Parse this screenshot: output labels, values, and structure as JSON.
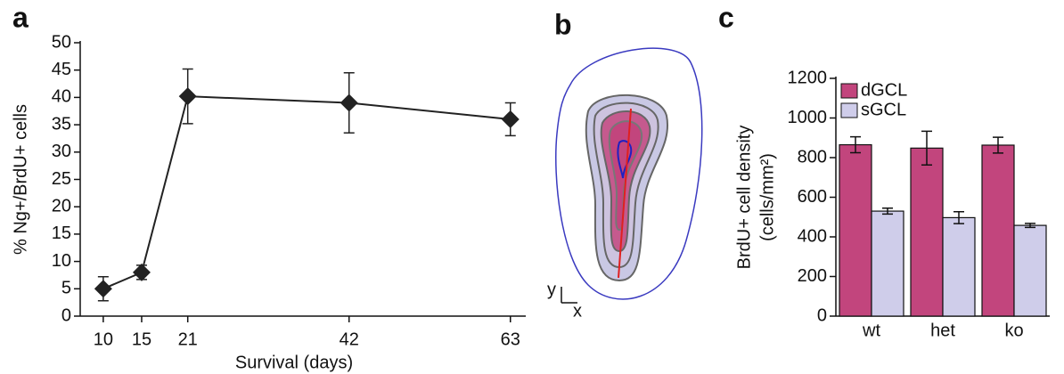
{
  "chart_data": [
    {
      "type": "line",
      "panel": "a",
      "x_label": "Survival (days)",
      "y_label": "% Ng+/BrdU+ cells",
      "x": [
        10,
        15,
        21,
        42,
        63
      ],
      "values": [
        5,
        8,
        40.2,
        39,
        36
      ],
      "errors": [
        2.2,
        1.3,
        5,
        5.5,
        3
      ],
      "color": "#222222",
      "xlim": [
        7,
        65
      ],
      "xticks": [
        10,
        15,
        21,
        42,
        63
      ],
      "ylim": [
        0,
        50
      ],
      "yticks": [
        0,
        5,
        10,
        15,
        20,
        25,
        30,
        35,
        40,
        45,
        50
      ]
    },
    {
      "type": "diagram",
      "panel": "b",
      "labels": [
        "y",
        "x"
      ]
    },
    {
      "type": "bar",
      "panel": "c",
      "y_label": "BrdU+ cell density",
      "y_label_unit": "(cells/mm²)",
      "categories": [
        "wt",
        "het",
        "ko"
      ],
      "series": [
        {
          "name": "dGCL",
          "color": "#c2457d",
          "values": [
            865,
            848,
            863
          ],
          "errors": [
            40,
            85,
            40
          ]
        },
        {
          "name": "sGCL",
          "color": "#cfcdea",
          "values": [
            530,
            497,
            458
          ],
          "errors": [
            15,
            30,
            10
          ]
        }
      ],
      "ylim": [
        0,
        1200
      ],
      "yticks": [
        0,
        200,
        400,
        600,
        800,
        1000,
        1200
      ],
      "legend": "top-left"
    }
  ]
}
